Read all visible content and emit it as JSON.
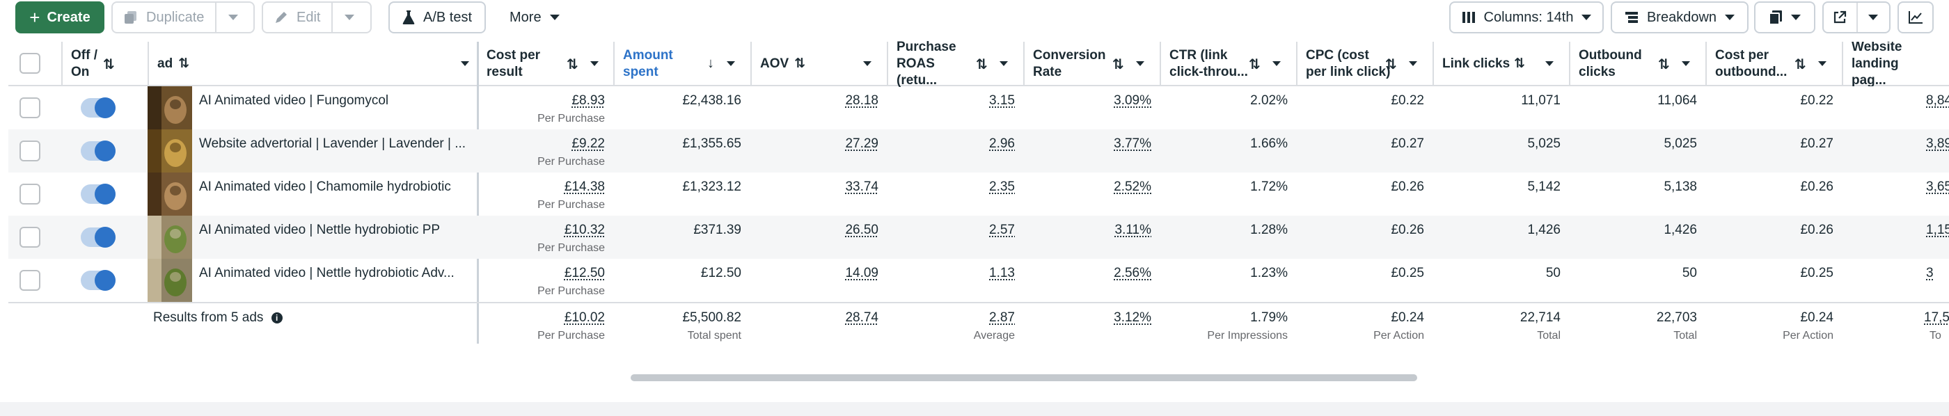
{
  "toolbar": {
    "create": "Create",
    "duplicate": "Duplicate",
    "edit": "Edit",
    "ab_test": "A/B test",
    "more": "More",
    "columns": "Columns: 14th",
    "breakdown": "Breakdown"
  },
  "table": {
    "headers": {
      "off_on": "Off / On",
      "ad": "ad",
      "cost_per_result": "Cost per result",
      "amount_spent": "Amount spent",
      "aov": "AOV",
      "purchase_roas": "Purchase ROAS (retu...",
      "conversion_rate": "Conversion Rate",
      "ctr": "CTR (link click-throu...",
      "cpc": "CPC (cost per link click)",
      "link_clicks": "Link clicks",
      "outbound_clicks": "Outbound clicks",
      "cost_per_outbound": "Cost per outbound...",
      "website_landing": "Website landing pag..."
    },
    "rows": [
      {
        "name": "AI Animated video | Fungomycol",
        "cost_per_result": "£8.93",
        "cpr_sub": "Per Purchase",
        "amount_spent": "£2,438.16",
        "aov": "28.18",
        "roas": "3.15",
        "conv": "3.09%",
        "ctr": "2.02%",
        "cpc": "£0.22",
        "link_clicks": "11,071",
        "outbound": "11,064",
        "cost_outbound": "£0.22",
        "landing": "8,84"
      },
      {
        "name": "Website advertorial | Lavender | Lavender | ...",
        "cost_per_result": "£9.22",
        "cpr_sub": "Per Purchase",
        "amount_spent": "£1,355.65",
        "aov": "27.29",
        "roas": "2.96",
        "conv": "3.77%",
        "ctr": "1.66%",
        "cpc": "£0.27",
        "link_clicks": "5,025",
        "outbound": "5,025",
        "cost_outbound": "£0.27",
        "landing": "3,89"
      },
      {
        "name": "AI Animated video | Chamomile hydrobiotic",
        "cost_per_result": "£14.38",
        "cpr_sub": "Per Purchase",
        "amount_spent": "£1,323.12",
        "aov": "33.74",
        "roas": "2.35",
        "conv": "2.52%",
        "ctr": "1.72%",
        "cpc": "£0.26",
        "link_clicks": "5,142",
        "outbound": "5,138",
        "cost_outbound": "£0.26",
        "landing": "3,65"
      },
      {
        "name": "AI Animated video | Nettle hydrobiotic PP",
        "cost_per_result": "£10.32",
        "cpr_sub": "Per Purchase",
        "amount_spent": "£371.39",
        "aov": "26.50",
        "roas": "2.57",
        "conv": "3.11%",
        "ctr": "1.28%",
        "cpc": "£0.26",
        "link_clicks": "1,426",
        "outbound": "1,426",
        "cost_outbound": "£0.26",
        "landing": "1,15"
      },
      {
        "name": "AI Animated video | Nettle hydrobiotic Adv...",
        "cost_per_result": "£12.50",
        "cpr_sub": "Per Purchase",
        "amount_spent": "£12.50",
        "aov": "14.09",
        "roas": "1.13",
        "conv": "2.56%",
        "ctr": "1.23%",
        "cpc": "£0.25",
        "link_clicks": "50",
        "outbound": "50",
        "cost_outbound": "£0.25",
        "landing": "3"
      }
    ],
    "totals": {
      "label": "Results from 5 ads",
      "cost_per_result": "£10.02",
      "cpr_sub": "Per Purchase",
      "amount_spent": "£5,500.82",
      "spent_sub": "Total spent",
      "aov": "28.74",
      "roas": "2.87",
      "roas_sub": "Average",
      "conv": "3.12%",
      "ctr": "1.79%",
      "ctr_sub": "Per Impressions",
      "cpc": "£0.24",
      "cpc_sub": "Per Action",
      "link_clicks": "22,714",
      "lc_sub": "Total",
      "outbound": "22,703",
      "ob_sub": "Total",
      "cost_outbound": "£0.24",
      "co_sub": "Per Action",
      "landing": "17,5",
      "landing_sub": "To"
    }
  }
}
